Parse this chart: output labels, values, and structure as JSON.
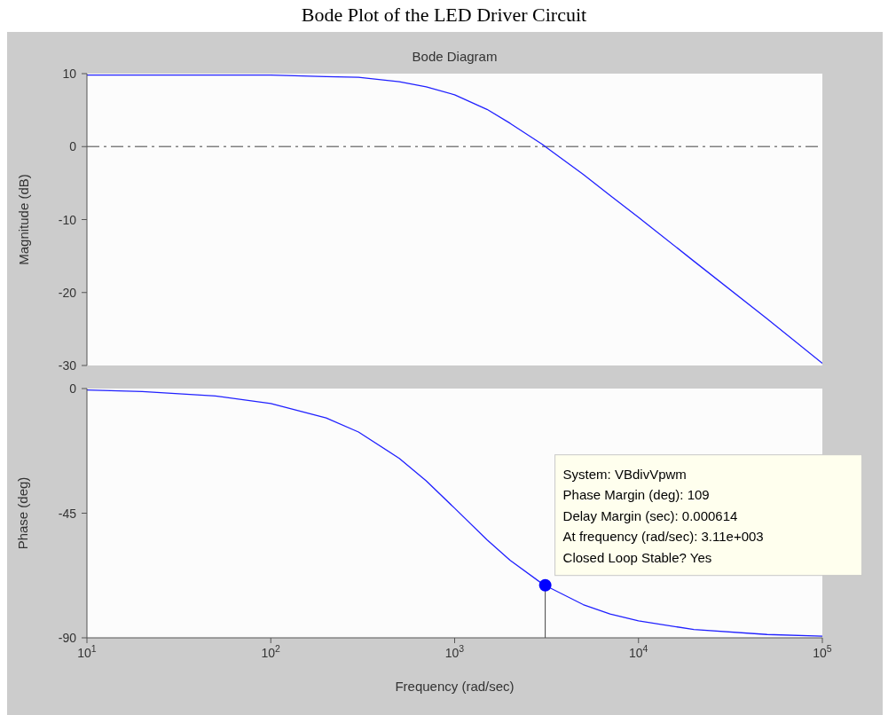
{
  "chart_data": [
    {
      "type": "line",
      "title": "Bode Plot of the LED Driver Circuit",
      "subtitle": "Bode Diagram",
      "ylabel": "Magnitude (dB)",
      "log": "x",
      "tick_labels": "y",
      "x": [
        10,
        20,
        50,
        100,
        200,
        300,
        500,
        700,
        1000,
        1500,
        2000,
        3000,
        3110,
        5000,
        7000,
        10000,
        20000,
        50000,
        100000
      ],
      "series": [
        {
          "color": "#2020ff",
          "values": [
            9.8,
            9.8,
            9.8,
            9.8,
            9.6,
            9.5,
            8.9,
            8.2,
            7.1,
            5.1,
            3.2,
            0.3,
            0.0,
            -3.8,
            -6.7,
            -9.7,
            -15.7,
            -23.6,
            -29.7
          ]
        }
      ],
      "xlim": [
        10,
        100000
      ],
      "xticks": [
        {
          "value": 10,
          "label": null
        },
        {
          "value": 100,
          "label": null
        },
        {
          "value": 1000,
          "label": null
        },
        {
          "value": 10000,
          "label": null
        },
        {
          "value": 100000,
          "label": null
        }
      ],
      "ylim": [
        -30,
        10
      ],
      "yticks": [
        -30,
        -20,
        -10,
        0,
        10
      ],
      "ref_lines": [
        {
          "axis": "y",
          "value": 0,
          "color": "#808080",
          "line_style": "dashed"
        }
      ]
    },
    {
      "type": "line",
      "xlabel": "Frequency  (rad/sec)",
      "ylabel": "Phase (deg)",
      "log": "x",
      "x": [
        10,
        20,
        50,
        100,
        200,
        300,
        500,
        700,
        1000,
        1500,
        2000,
        3000,
        3110,
        5000,
        7000,
        10000,
        20000,
        50000,
        100000
      ],
      "series": [
        {
          "color": "#2020ff",
          "values": [
            -0.5,
            -1.1,
            -2.7,
            -5.4,
            -10.6,
            -15.7,
            -25.2,
            -33.3,
            -43.2,
            -54.6,
            -62.0,
            -70.5,
            -71.1,
            -78.0,
            -81.4,
            -83.9,
            -87.0,
            -88.8,
            -89.4
          ]
        },
        {
          "type": "scatter",
          "color": "#0000ff",
          "x": [
            3110
          ],
          "values": [
            -71
          ],
          "errors": [
            [
              -90,
              -71
            ]
          ]
        }
      ],
      "xlim": [
        10,
        100000
      ],
      "xticks": [
        {
          "value": 10,
          "label": "10$^{1}$"
        },
        {
          "value": 100,
          "label": "10$^{2}$"
        },
        {
          "value": 1000,
          "label": "10$^{3}$"
        },
        {
          "value": 10000,
          "label": "10$^{4}$"
        },
        {
          "value": 100000,
          "label": "10$^{5}$"
        }
      ],
      "ylim": [
        -90,
        0
      ],
      "yticks": [
        -90,
        -45,
        0
      ],
      "annotations": [
        {
          "text": "System: VBdivVpwm\nPhase Margin (deg): 109\nDelay Margin (sec): 0.000614\nAt frequency (rad/sec): 3.11e+003\nClosed Loop Stable? Yes",
          "x": 3110,
          "y": -71
        }
      ]
    }
  ]
}
